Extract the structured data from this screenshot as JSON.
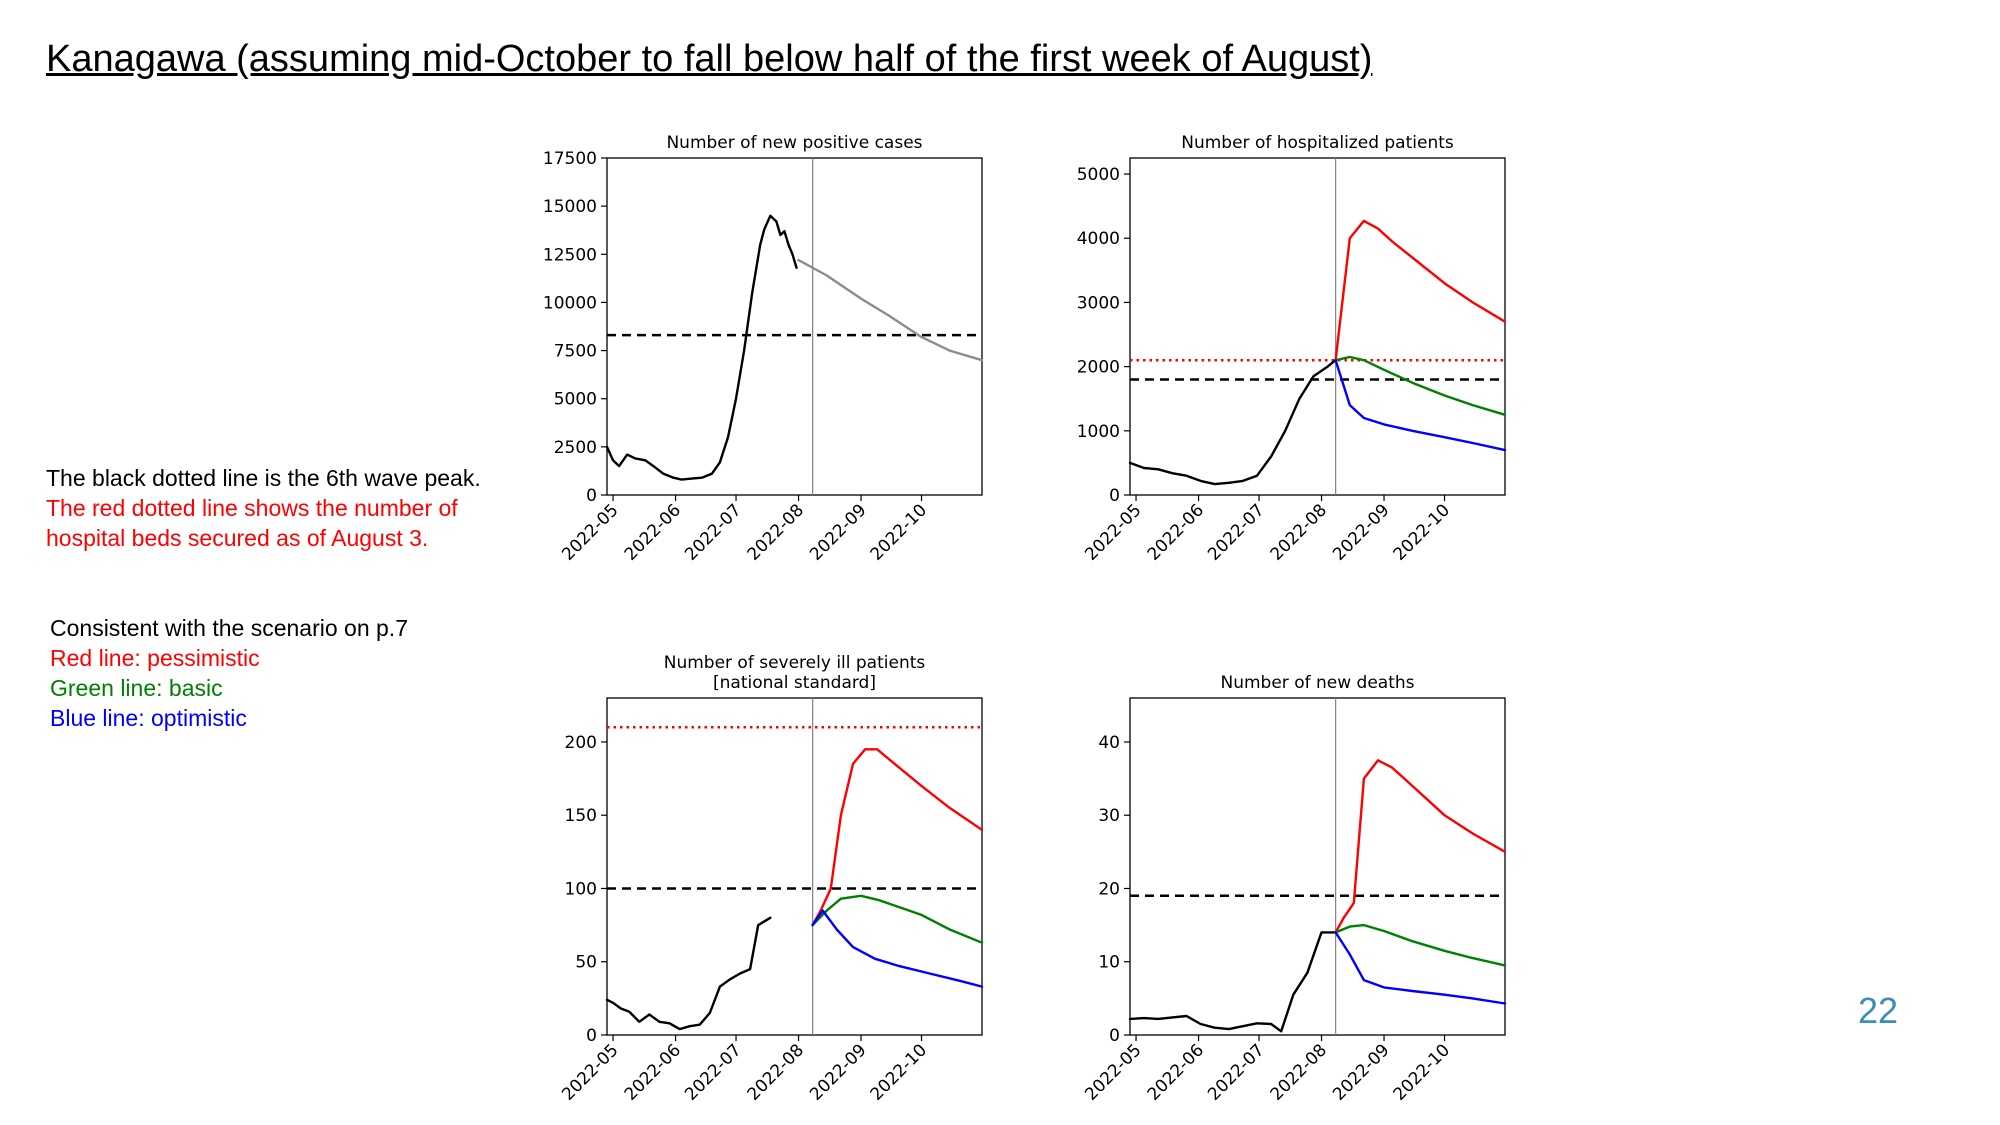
{
  "title": "Kanagawa (assuming mid-October to fall below half of the first week of August)",
  "notes": {
    "black_line": "The black dotted line is the 6th wave peak.",
    "red_line_1": "The red dotted line shows the number of",
    "red_line_2": "hospital beds secured as of August 3.",
    "scenario_intro": "Consistent with the scenario on p.7",
    "legend_red": "Red line: pessimistic",
    "legend_green": "Green line: basic",
    "legend_blue": "Blue line: optimistic"
  },
  "page_number": "22",
  "colors": {
    "actual": "#000000",
    "projection_gray": "#8c8c8c",
    "pessimistic": "#ff0000",
    "basic": "#008000",
    "optimistic": "#0000ff",
    "vline": "#808080"
  },
  "chart_data": [
    {
      "type": "line",
      "title": "Number of new positive cases",
      "x_ticks": [
        "2022-05",
        "2022-06",
        "2022-07",
        "2022-08",
        "2022-09",
        "2022-10"
      ],
      "y_ticks": [
        0,
        2500,
        5000,
        7500,
        10000,
        12500,
        15000,
        17500
      ],
      "xlim": [
        "2022-04-28",
        "2022-10-31"
      ],
      "ylim": [
        0,
        17500
      ],
      "vline": "2022-08-08",
      "hlines": [
        {
          "y": 8300,
          "style": "dashed",
          "color": "#000000",
          "label": "6th wave peak"
        }
      ],
      "series": [
        {
          "role": "actual",
          "points": [
            [
              "2022-04-28",
              2500
            ],
            [
              "2022-05-01",
              1800
            ],
            [
              "2022-05-04",
              1500
            ],
            [
              "2022-05-08",
              2100
            ],
            [
              "2022-05-12",
              1900
            ],
            [
              "2022-05-17",
              1800
            ],
            [
              "2022-05-21",
              1500
            ],
            [
              "2022-05-26",
              1100
            ],
            [
              "2022-05-31",
              900
            ],
            [
              "2022-06-04",
              800
            ],
            [
              "2022-06-09",
              850
            ],
            [
              "2022-06-14",
              900
            ],
            [
              "2022-06-19",
              1100
            ],
            [
              "2022-06-23",
              1700
            ],
            [
              "2022-06-27",
              3000
            ],
            [
              "2022-07-01",
              5000
            ],
            [
              "2022-07-05",
              7500
            ],
            [
              "2022-07-09",
              10500
            ],
            [
              "2022-07-13",
              13000
            ],
            [
              "2022-07-15",
              13800
            ],
            [
              "2022-07-18",
              14500
            ],
            [
              "2022-07-21",
              14200
            ],
            [
              "2022-07-23",
              13500
            ],
            [
              "2022-07-25",
              13700
            ],
            [
              "2022-07-27",
              13000
            ],
            [
              "2022-07-29",
              12500
            ],
            [
              "2022-07-31",
              11800
            ]
          ]
        },
        {
          "role": "projection",
          "points": [
            [
              "2022-08-01",
              12200
            ],
            [
              "2022-08-15",
              11400
            ],
            [
              "2022-09-01",
              10200
            ],
            [
              "2022-09-15",
              9300
            ],
            [
              "2022-10-01",
              8200
            ],
            [
              "2022-10-15",
              7500
            ],
            [
              "2022-10-31",
              7000
            ]
          ]
        }
      ]
    },
    {
      "type": "line",
      "title": "Number of hospitalized patients",
      "x_ticks": [
        "2022-05",
        "2022-06",
        "2022-07",
        "2022-08",
        "2022-09",
        "2022-10"
      ],
      "y_ticks": [
        0,
        1000,
        2000,
        3000,
        4000,
        5000
      ],
      "xlim": [
        "2022-04-28",
        "2022-10-31"
      ],
      "ylim": [
        0,
        5250
      ],
      "vline": "2022-08-08",
      "hlines": [
        {
          "y": 1800,
          "style": "dashed",
          "color": "#000000",
          "label": "6th wave peak"
        },
        {
          "y": 2100,
          "style": "dotted",
          "color": "#ff0000",
          "label": "hospital beds secured"
        }
      ],
      "series": [
        {
          "role": "actual",
          "points": [
            [
              "2022-04-28",
              500
            ],
            [
              "2022-05-05",
              420
            ],
            [
              "2022-05-12",
              400
            ],
            [
              "2022-05-19",
              340
            ],
            [
              "2022-05-26",
              300
            ],
            [
              "2022-06-02",
              220
            ],
            [
              "2022-06-09",
              170
            ],
            [
              "2022-06-16",
              190
            ],
            [
              "2022-06-23",
              220
            ],
            [
              "2022-06-30",
              300
            ],
            [
              "2022-07-07",
              600
            ],
            [
              "2022-07-14",
              1000
            ],
            [
              "2022-07-21",
              1500
            ],
            [
              "2022-07-28",
              1850
            ],
            [
              "2022-08-04",
              2000
            ],
            [
              "2022-08-08",
              2100
            ]
          ]
        },
        {
          "role": "pessimistic",
          "points": [
            [
              "2022-08-08",
              2100
            ],
            [
              "2022-08-15",
              4000
            ],
            [
              "2022-08-22",
              4270
            ],
            [
              "2022-08-29",
              4150
            ],
            [
              "2022-09-05",
              3950
            ],
            [
              "2022-09-15",
              3700
            ],
            [
              "2022-10-01",
              3300
            ],
            [
              "2022-10-15",
              3000
            ],
            [
              "2022-10-31",
              2700
            ]
          ]
        },
        {
          "role": "basic",
          "points": [
            [
              "2022-08-08",
              2100
            ],
            [
              "2022-08-15",
              2150
            ],
            [
              "2022-08-22",
              2100
            ],
            [
              "2022-09-01",
              1950
            ],
            [
              "2022-09-15",
              1750
            ],
            [
              "2022-10-01",
              1550
            ],
            [
              "2022-10-15",
              1400
            ],
            [
              "2022-10-31",
              1250
            ]
          ]
        },
        {
          "role": "optimistic",
          "points": [
            [
              "2022-08-08",
              2100
            ],
            [
              "2022-08-15",
              1400
            ],
            [
              "2022-08-22",
              1200
            ],
            [
              "2022-09-01",
              1100
            ],
            [
              "2022-09-15",
              1000
            ],
            [
              "2022-10-01",
              900
            ],
            [
              "2022-10-15",
              810
            ],
            [
              "2022-10-31",
              700
            ]
          ]
        }
      ]
    },
    {
      "type": "line",
      "title": "Number of severely ill patients",
      "subtitle": "[national standard]",
      "x_ticks": [
        "2022-05",
        "2022-06",
        "2022-07",
        "2022-08",
        "2022-09",
        "2022-10"
      ],
      "y_ticks": [
        0,
        50,
        100,
        150,
        200
      ],
      "xlim": [
        "2022-04-28",
        "2022-10-31"
      ],
      "ylim": [
        0,
        230
      ],
      "vline": "2022-08-08",
      "hlines": [
        {
          "y": 100,
          "style": "dashed",
          "color": "#000000",
          "label": "6th wave peak"
        },
        {
          "y": 210,
          "style": "dotted",
          "color": "#ff0000",
          "label": "hospital beds secured"
        }
      ],
      "series": [
        {
          "role": "actual",
          "points": [
            [
              "2022-04-28",
              24
            ],
            [
              "2022-05-01",
              22
            ],
            [
              "2022-05-05",
              18
            ],
            [
              "2022-05-09",
              16
            ],
            [
              "2022-05-14",
              9
            ],
            [
              "2022-05-19",
              14
            ],
            [
              "2022-05-24",
              9
            ],
            [
              "2022-05-29",
              8
            ],
            [
              "2022-06-03",
              4
            ],
            [
              "2022-06-08",
              6
            ],
            [
              "2022-06-13",
              7
            ],
            [
              "2022-06-18",
              15
            ],
            [
              "2022-06-23",
              33
            ],
            [
              "2022-06-28",
              38
            ],
            [
              "2022-07-03",
              42
            ],
            [
              "2022-07-08",
              45
            ],
            [
              "2022-07-12",
              75
            ],
            [
              "2022-07-18",
              80
            ]
          ]
        },
        {
          "role": "pessimistic",
          "points": [
            [
              "2022-08-08",
              75
            ],
            [
              "2022-08-12",
              85
            ],
            [
              "2022-08-17",
              100
            ],
            [
              "2022-08-22",
              150
            ],
            [
              "2022-08-28",
              185
            ],
            [
              "2022-09-03",
              195
            ],
            [
              "2022-09-09",
              195
            ],
            [
              "2022-09-15",
              188
            ],
            [
              "2022-10-01",
              170
            ],
            [
              "2022-10-15",
              155
            ],
            [
              "2022-10-31",
              140
            ]
          ]
        },
        {
          "role": "basic",
          "points": [
            [
              "2022-08-08",
              75
            ],
            [
              "2022-08-15",
              85
            ],
            [
              "2022-08-22",
              93
            ],
            [
              "2022-09-01",
              95
            ],
            [
              "2022-09-10",
              92
            ],
            [
              "2022-10-01",
              82
            ],
            [
              "2022-10-15",
              72
            ],
            [
              "2022-10-31",
              63
            ]
          ]
        },
        {
          "role": "optimistic",
          "points": [
            [
              "2022-08-08",
              75
            ],
            [
              "2022-08-13",
              85
            ],
            [
              "2022-08-20",
              72
            ],
            [
              "2022-08-28",
              60
            ],
            [
              "2022-09-08",
              52
            ],
            [
              "2022-09-20",
              47
            ],
            [
              "2022-10-05",
              42
            ],
            [
              "2022-10-20",
              37
            ],
            [
              "2022-10-31",
              33
            ]
          ]
        }
      ]
    },
    {
      "type": "line",
      "title": "Number of new deaths",
      "x_ticks": [
        "2022-05",
        "2022-06",
        "2022-07",
        "2022-08",
        "2022-09",
        "2022-10"
      ],
      "y_ticks": [
        0,
        10,
        20,
        30,
        40
      ],
      "xlim": [
        "2022-04-28",
        "2022-10-31"
      ],
      "ylim": [
        0,
        46
      ],
      "vline": "2022-08-08",
      "hlines": [
        {
          "y": 19,
          "style": "dashed",
          "color": "#000000",
          "label": "6th wave peak"
        }
      ],
      "series": [
        {
          "role": "actual",
          "points": [
            [
              "2022-04-28",
              2.2
            ],
            [
              "2022-05-05",
              2.3
            ],
            [
              "2022-05-12",
              2.2
            ],
            [
              "2022-05-19",
              2.4
            ],
            [
              "2022-05-26",
              2.6
            ],
            [
              "2022-06-02",
              1.5
            ],
            [
              "2022-06-09",
              1.0
            ],
            [
              "2022-06-16",
              0.8
            ],
            [
              "2022-06-23",
              1.2
            ],
            [
              "2022-06-30",
              1.6
            ],
            [
              "2022-07-07",
              1.5
            ],
            [
              "2022-07-12",
              0.5
            ],
            [
              "2022-07-18",
              5.5
            ],
            [
              "2022-07-25",
              8.5
            ],
            [
              "2022-08-01",
              14
            ],
            [
              "2022-08-08",
              14
            ]
          ]
        },
        {
          "role": "pessimistic",
          "points": [
            [
              "2022-08-08",
              14
            ],
            [
              "2022-08-12",
              16
            ],
            [
              "2022-08-17",
              18
            ],
            [
              "2022-08-22",
              35
            ],
            [
              "2022-08-29",
              37.5
            ],
            [
              "2022-09-05",
              36.5
            ],
            [
              "2022-09-15",
              34
            ],
            [
              "2022-10-01",
              30
            ],
            [
              "2022-10-15",
              27.5
            ],
            [
              "2022-10-31",
              25
            ]
          ]
        },
        {
          "role": "basic",
          "points": [
            [
              "2022-08-08",
              14
            ],
            [
              "2022-08-15",
              14.8
            ],
            [
              "2022-08-22",
              15
            ],
            [
              "2022-09-01",
              14.2
            ],
            [
              "2022-09-15",
              12.8
            ],
            [
              "2022-10-01",
              11.5
            ],
            [
              "2022-10-15",
              10.5
            ],
            [
              "2022-10-31",
              9.5
            ]
          ]
        },
        {
          "role": "optimistic",
          "points": [
            [
              "2022-08-08",
              14
            ],
            [
              "2022-08-15",
              11
            ],
            [
              "2022-08-22",
              7.5
            ],
            [
              "2022-09-01",
              6.5
            ],
            [
              "2022-09-15",
              6
            ],
            [
              "2022-10-01",
              5.5
            ],
            [
              "2022-10-15",
              5
            ],
            [
              "2022-10-31",
              4.3
            ]
          ]
        }
      ]
    }
  ]
}
